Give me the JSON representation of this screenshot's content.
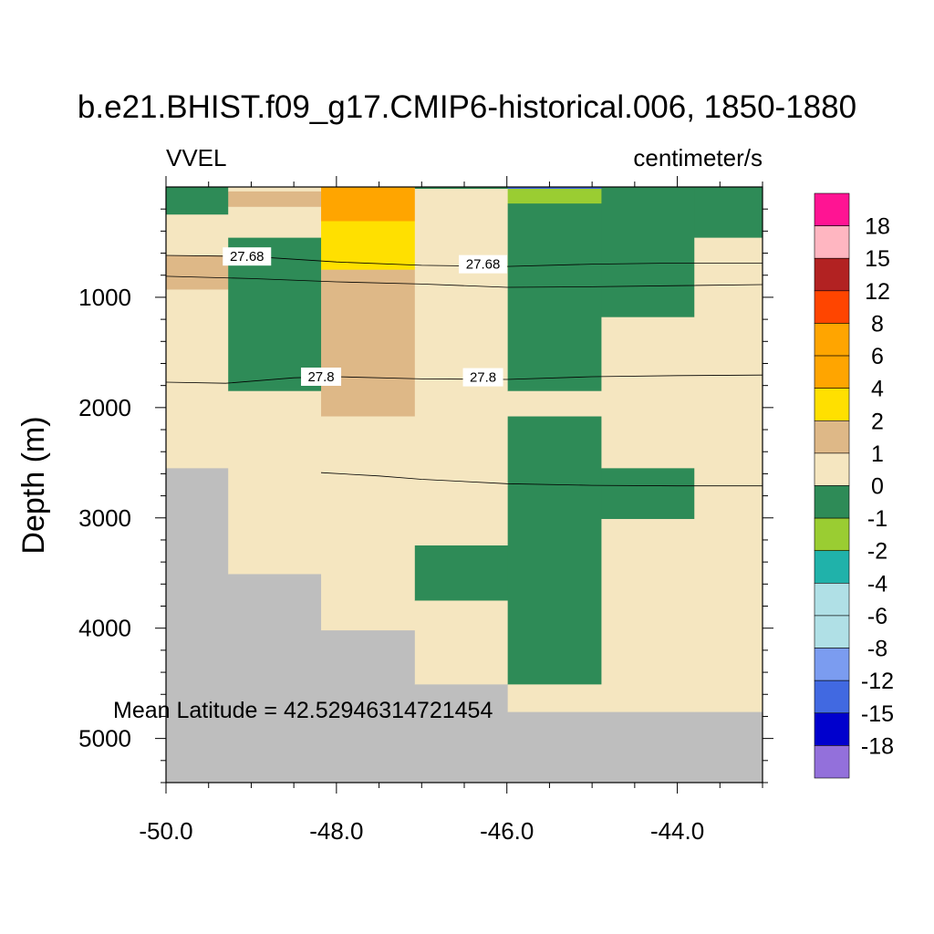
{
  "chart_data": {
    "type": "heatmap",
    "title": "b.e21.BHIST.f09_g17.CMIP6-historical.006, 1850-1880",
    "variable": "VVEL",
    "units": "centimeter/s",
    "xlabel": "",
    "ylabel": "Depth (m)",
    "xlim": [
      -50.0,
      -43.0
    ],
    "ylim": [
      5400,
      0
    ],
    "x_ticks": [
      "-50.0",
      "-48.0",
      "-46.0",
      "-44.0"
    ],
    "x_tick_values": [
      -50,
      -48,
      -46,
      -44
    ],
    "y_ticks": [
      "1000",
      "2000",
      "3000",
      "4000",
      "5000"
    ],
    "y_tick_values": [
      1000,
      2000,
      3000,
      4000,
      5000
    ],
    "annotation": "Mean Latitude = 42.52946314721454",
    "colorbar": {
      "levels": [
        "18",
        "15",
        "12",
        "8",
        "6",
        "4",
        "2",
        "1",
        "0",
        "-1",
        "-2",
        "-4",
        "-6",
        "-8",
        "-12",
        "-15",
        "-18"
      ],
      "colors": [
        "#ff1493",
        "#ffb6c1",
        "#b22222",
        "#ff4500",
        "#ffa500",
        "#ffa500",
        "#ffe000",
        "#deb887",
        "#f5e6c0",
        "#2e8b57",
        "#9acd32",
        "#20b2aa",
        "#b0e0e6",
        "#b0e0e6",
        "#7b9cf0",
        "#4169e1",
        "#0000cd",
        "#9370db"
      ]
    },
    "missing_color": "#bebebe",
    "cells": [
      {
        "x0": -50.0,
        "x1": -49.27,
        "d0": 0,
        "d1": 250,
        "value": -0.5
      },
      {
        "x0": -50.0,
        "x1": -49.27,
        "d0": 250,
        "d1": 620,
        "value": 0.5
      },
      {
        "x0": -50.0,
        "x1": -49.27,
        "d0": 620,
        "d1": 930,
        "value": 1.5
      },
      {
        "x0": -50.0,
        "x1": -49.27,
        "d0": 930,
        "d1": 2550,
        "value": 0.5
      },
      {
        "x0": -50.0,
        "x1": -49.27,
        "d0": 2550,
        "d1": 5400,
        "value": null
      },
      {
        "x0": -49.27,
        "x1": -48.18,
        "d0": 0,
        "d1": 40,
        "value": 0.5
      },
      {
        "x0": -49.27,
        "x1": -48.18,
        "d0": 40,
        "d1": 180,
        "value": 1.5
      },
      {
        "x0": -49.27,
        "x1": -48.18,
        "d0": 180,
        "d1": 460,
        "value": 0.5
      },
      {
        "x0": -49.27,
        "x1": -48.18,
        "d0": 460,
        "d1": 1850,
        "value": -0.5
      },
      {
        "x0": -49.27,
        "x1": -48.18,
        "d0": 1850,
        "d1": 3510,
        "value": 0.5
      },
      {
        "x0": -49.27,
        "x1": -48.18,
        "d0": 3510,
        "d1": 5400,
        "value": null
      },
      {
        "x0": -48.18,
        "x1": -47.08,
        "d0": 0,
        "d1": 310,
        "value": 5
      },
      {
        "x0": -48.18,
        "x1": -47.08,
        "d0": 310,
        "d1": 750,
        "value": 3
      },
      {
        "x0": -48.18,
        "x1": -47.08,
        "d0": 750,
        "d1": 2080,
        "value": 1.5
      },
      {
        "x0": -48.18,
        "x1": -47.08,
        "d0": 2080,
        "d1": 4020,
        "value": 0.5
      },
      {
        "x0": -48.18,
        "x1": -47.08,
        "d0": 4020,
        "d1": 5400,
        "value": null
      },
      {
        "x0": -47.08,
        "x1": -45.99,
        "d0": 0,
        "d1": 3250,
        "value": 0.5
      },
      {
        "x0": -47.08,
        "x1": -45.99,
        "d0": 3250,
        "d1": 3750,
        "value": -0.5
      },
      {
        "x0": -47.08,
        "x1": -45.99,
        "d0": 3750,
        "d1": 4510,
        "value": 0.5
      },
      {
        "x0": -47.08,
        "x1": -45.99,
        "d0": 4510,
        "d1": 5400,
        "value": null
      },
      {
        "x0": -45.99,
        "x1": -44.89,
        "d0": 0,
        "d1": 150,
        "value": -1.5
      },
      {
        "x0": -45.99,
        "x1": -44.89,
        "d0": 150,
        "d1": 1850,
        "value": -0.5
      },
      {
        "x0": -45.99,
        "x1": -44.89,
        "d0": 1850,
        "d1": 2080,
        "value": 0.5
      },
      {
        "x0": -45.99,
        "x1": -44.89,
        "d0": 2080,
        "d1": 4510,
        "value": -0.5
      },
      {
        "x0": -45.99,
        "x1": -44.89,
        "d0": 4510,
        "d1": 4760,
        "value": 0.5
      },
      {
        "x0": -45.99,
        "x1": -44.89,
        "d0": 4760,
        "d1": 5400,
        "value": null
      },
      {
        "x0": -44.89,
        "x1": -43.8,
        "d0": 0,
        "d1": 1180,
        "value": -0.5
      },
      {
        "x0": -44.89,
        "x1": -43.8,
        "d0": 1180,
        "d1": 2550,
        "value": 0.5
      },
      {
        "x0": -44.89,
        "x1": -43.8,
        "d0": 2550,
        "d1": 3010,
        "value": -0.5
      },
      {
        "x0": -44.89,
        "x1": -43.8,
        "d0": 3010,
        "d1": 4760,
        "value": 0.5
      },
      {
        "x0": -44.89,
        "x1": -43.8,
        "d0": 4760,
        "d1": 5400,
        "value": null
      },
      {
        "x0": -43.8,
        "x1": -43.0,
        "d0": 0,
        "d1": 460,
        "value": -0.5
      },
      {
        "x0": -43.8,
        "x1": -43.0,
        "d0": 460,
        "d1": 4760,
        "value": 0.5
      },
      {
        "x0": -43.8,
        "x1": -43.0,
        "d0": 4760,
        "d1": 5400,
        "value": null
      }
    ],
    "contours": [
      {
        "level": "27.68",
        "points": [
          [
            -50.0,
            620
          ],
          [
            -49.0,
            630
          ],
          [
            -48.0,
            680
          ],
          [
            -47.0,
            710
          ],
          [
            -46.0,
            720
          ],
          [
            -45.0,
            700
          ],
          [
            -44.0,
            690
          ],
          [
            -43.0,
            690
          ]
        ],
        "labels": [
          {
            "x": -49.05,
            "d": 630
          },
          {
            "x": -46.28,
            "d": 700
          }
        ]
      },
      {
        "level": "27.68",
        "points": [
          [
            -50.0,
            810
          ],
          [
            -49.0,
            830
          ],
          [
            -48.0,
            860
          ],
          [
            -47.0,
            880
          ],
          [
            -46.0,
            910
          ],
          [
            -45.0,
            905
          ],
          [
            -44.0,
            895
          ],
          [
            -43.0,
            885
          ]
        ],
        "labels": []
      },
      {
        "level": "27.8",
        "points": [
          [
            -50.0,
            1770
          ],
          [
            -49.3,
            1780
          ],
          [
            -48.5,
            1730
          ],
          [
            -48.0,
            1720
          ],
          [
            -47.0,
            1740
          ],
          [
            -46.0,
            1745
          ],
          [
            -45.0,
            1720
          ],
          [
            -44.0,
            1710
          ],
          [
            -43.0,
            1705
          ]
        ],
        "labels": [
          {
            "x": -48.18,
            "d": 1720
          },
          {
            "x": -46.28,
            "d": 1725
          }
        ]
      },
      {
        "level": "",
        "points": [
          [
            -48.18,
            2590
          ],
          [
            -47.5,
            2620
          ],
          [
            -47.0,
            2650
          ],
          [
            -46.0,
            2690
          ],
          [
            -45.0,
            2705
          ],
          [
            -44.0,
            2710
          ],
          [
            -43.0,
            2710
          ]
        ],
        "labels": []
      }
    ]
  }
}
